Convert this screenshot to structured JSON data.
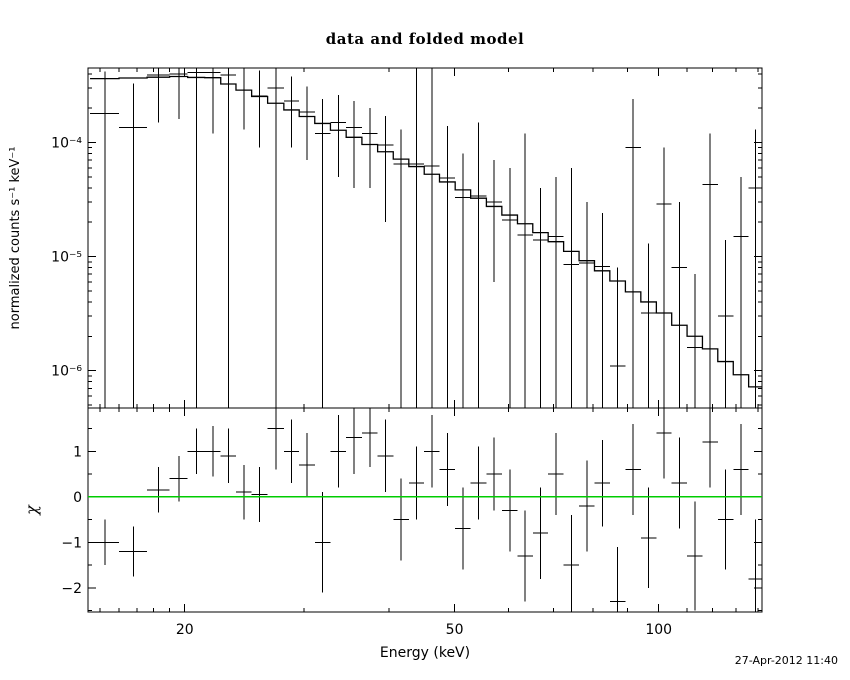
{
  "title": "data and folded model",
  "timestamp": "27-Apr-2012 11:40",
  "colors": {
    "foreground": "#000000",
    "background": "#ffffff",
    "zero_line": "#00cc00"
  },
  "chart_data": [
    {
      "type": "scatter",
      "panel": "spectrum",
      "xscale": "log",
      "yscale": "log",
      "xlim": [
        14.4,
        142.0
      ],
      "ylim": [
        4.7e-07,
        0.00045
      ],
      "ylabel": "normalized counts s⁻¹ keV⁻¹",
      "x_ticks_major": [
        20,
        50,
        100
      ],
      "x_tick_labels": [
        "20",
        "50",
        "100"
      ],
      "x_ticks_minor": [
        15,
        16,
        17,
        18,
        19,
        30,
        40,
        60,
        70,
        80,
        90,
        110,
        120,
        130,
        140
      ],
      "y_ticks_major": [
        0.0001,
        1e-05,
        1e-06
      ],
      "y_tick_labels": [
        "10⁻⁴",
        "10⁻⁵",
        "10⁻⁶"
      ],
      "y_ticks_minor": [
        5e-07,
        6e-07,
        7e-07,
        8e-07,
        9e-07,
        2e-06,
        3e-06,
        4e-06,
        5e-06,
        6e-06,
        7e-06,
        8e-06,
        9e-06,
        2e-05,
        3e-05,
        4e-05,
        5e-05,
        6e-05,
        7e-05,
        8e-05,
        9e-05,
        0.0002,
        0.0003,
        0.0004
      ],
      "model": {
        "label": "folded model",
        "bin_edges": [
          14.5,
          16.0,
          17.6,
          19.0,
          20.2,
          21.4,
          22.6,
          23.8,
          25.1,
          26.5,
          28.0,
          29.5,
          31.1,
          32.8,
          34.6,
          36.5,
          38.5,
          40.6,
          42.8,
          45.1,
          47.5,
          50.1,
          52.8,
          55.7,
          58.7,
          61.9,
          65.2,
          68.7,
          72.4,
          76.3,
          80.4,
          84.7,
          89.3,
          94.1,
          99.2,
          104.5,
          110.1,
          116.0,
          122.2,
          128.8,
          135.7,
          142.0
        ],
        "values": [
          0.000363,
          0.000368,
          0.000374,
          0.000379,
          0.000372,
          0.00037,
          0.000326,
          0.000288,
          0.000253,
          0.000221,
          0.000193,
          0.000169,
          0.000147,
          0.000128,
          0.000111,
          9.6e-05,
          8.3e-05,
          7.15e-05,
          6.15e-05,
          5.27e-05,
          4.51e-05,
          3.84e-05,
          3.25e-05,
          2.75e-05,
          2.31e-05,
          1.94e-05,
          1.62e-05,
          1.35e-05,
          1.11e-05,
          9.2e-06,
          7.5e-06,
          6.1e-06,
          4.9e-06,
          4e-06,
          3.2e-06,
          2.5e-06,
          2e-06,
          1.55e-06,
          1.2e-06,
          9.2e-07,
          7.2e-07
        ]
      },
      "points_format": [
        "energy_keV",
        "half_width_keV",
        "flux",
        "err_low_abs",
        "err_high_abs"
      ],
      "points": [
        [
          15.25,
          0.75,
          0.00018,
          0,
          0.00042
        ],
        [
          16.8,
          0.8,
          0.000135,
          0,
          0.00033
        ],
        [
          18.3,
          0.7,
          0.00039,
          0.00015,
          0.00052
        ],
        [
          19.6,
          0.6,
          0.0004,
          0.00016,
          0.0006
        ],
        [
          20.8,
          0.6,
          0.00041,
          0,
          0.00065
        ],
        [
          22.0,
          0.6,
          0.00041,
          0.00012,
          0.0006
        ],
        [
          23.2,
          0.6,
          0.00039,
          0,
          0.0006
        ],
        [
          24.45,
          0.65,
          0.00029,
          0.00013,
          0.00046
        ],
        [
          25.8,
          0.7,
          0.000255,
          9e-05,
          0.00043
        ],
        [
          27.25,
          0.75,
          0.0003,
          0,
          0.0005
        ],
        [
          28.75,
          0.75,
          0.00023,
          9e-05,
          0.00038
        ],
        [
          30.3,
          0.8,
          0.000185,
          7e-05,
          0.00031
        ],
        [
          31.95,
          0.85,
          0.00012,
          0,
          0.00024
        ],
        [
          33.7,
          0.9,
          0.00015,
          5e-05,
          0.00026
        ],
        [
          35.55,
          0.95,
          0.000135,
          4e-05,
          0.00023
        ],
        [
          37.5,
          1.0,
          0.00012,
          4e-05,
          0.0002
        ],
        [
          39.55,
          1.05,
          9.5e-05,
          2e-05,
          0.00017
        ],
        [
          41.7,
          1.1,
          6.5e-05,
          0,
          0.00013
        ],
        [
          43.95,
          1.15,
          6.5e-05,
          0,
          0.0005
        ],
        [
          46.3,
          1.2,
          6.2e-05,
          0,
          0.00048
        ],
        [
          48.8,
          1.3,
          4.9e-05,
          0,
          0.00014
        ],
        [
          51.45,
          1.35,
          3.3e-05,
          0,
          8e-05
        ],
        [
          54.25,
          1.45,
          3.4e-05,
          0,
          0.00015
        ],
        [
          57.2,
          1.5,
          3e-05,
          6e-06,
          7e-05
        ],
        [
          60.3,
          1.6,
          2.1e-05,
          0,
          6e-05
        ],
        [
          63.55,
          1.65,
          1.55e-05,
          0,
          0.00012
        ],
        [
          66.95,
          1.75,
          1.4e-05,
          0,
          4e-05
        ],
        [
          70.55,
          1.85,
          1.5e-05,
          0,
          5e-05
        ],
        [
          74.35,
          1.95,
          8.5e-06,
          0,
          6e-05
        ],
        [
          78.35,
          2.05,
          8.8e-06,
          0,
          3e-05
        ],
        [
          82.55,
          2.15,
          8.2e-06,
          0,
          2.4e-05
        ],
        [
          87.0,
          2.3,
          1.1e-06,
          0,
          8e-06
        ],
        [
          91.7,
          2.4,
          9e-05,
          0,
          0.00024
        ],
        [
          96.65,
          2.55,
          3.2e-06,
          0,
          1.3e-05
        ],
        [
          101.85,
          2.65,
          2.9e-05,
          0,
          9e-05
        ],
        [
          107.3,
          2.8,
          8e-06,
          0,
          3e-05
        ],
        [
          113.05,
          2.95,
          1.6e-06,
          0,
          7e-06
        ],
        [
          119.1,
          3.1,
          4.3e-05,
          0,
          0.00012
        ],
        [
          125.5,
          3.3,
          3e-06,
          0,
          1.4e-05
        ],
        [
          132.25,
          3.45,
          1.5e-05,
          0,
          5e-05
        ],
        [
          138.85,
          3.15,
          4e-05,
          0,
          0.00013
        ]
      ]
    },
    {
      "type": "scatter",
      "panel": "residuals",
      "xscale": "log",
      "yscale": "linear",
      "xlim": [
        14.4,
        142.0
      ],
      "ylim": [
        -2.53,
        1.95
      ],
      "xlabel": "Energy (keV)",
      "ylabel": "χ",
      "y_ticks_major": [
        -2,
        -1,
        0,
        1
      ],
      "y_tick_labels": [
        "−2",
        "−1",
        "0",
        "1"
      ],
      "y_ticks_minor": [
        -2.5,
        -1.5,
        -0.5,
        0.5,
        1.5
      ],
      "zero_line": {
        "y": 0,
        "color": "#00cc00"
      },
      "points_format": [
        "energy_keV",
        "half_width_keV",
        "chi",
        "err_low",
        "err_high"
      ],
      "points": [
        [
          15.25,
          0.75,
          -1.0,
          -1.5,
          -0.5
        ],
        [
          16.8,
          0.8,
          -1.2,
          -1.75,
          -0.65
        ],
        [
          18.3,
          0.7,
          0.15,
          -0.35,
          0.65
        ],
        [
          19.6,
          0.6,
          0.4,
          -0.1,
          0.9
        ],
        [
          20.8,
          0.6,
          1.0,
          0.5,
          1.5
        ],
        [
          22.0,
          0.6,
          1.0,
          0.45,
          1.55
        ],
        [
          23.2,
          0.6,
          0.9,
          0.3,
          1.5
        ],
        [
          24.45,
          0.65,
          0.1,
          -0.5,
          0.7
        ],
        [
          25.8,
          0.7,
          0.05,
          -0.55,
          0.65
        ],
        [
          27.25,
          0.75,
          1.5,
          0.6,
          2.4
        ],
        [
          28.75,
          0.75,
          1.0,
          0.3,
          1.7
        ],
        [
          30.3,
          0.8,
          0.7,
          0.0,
          1.4
        ],
        [
          31.95,
          0.85,
          -1.0,
          -2.1,
          0.1
        ],
        [
          33.7,
          0.9,
          1.0,
          0.2,
          1.8
        ],
        [
          35.55,
          0.95,
          1.3,
          0.5,
          2.1
        ],
        [
          37.5,
          1.0,
          1.4,
          0.65,
          2.15
        ],
        [
          39.55,
          1.05,
          0.9,
          0.1,
          1.7
        ],
        [
          41.7,
          1.1,
          -0.5,
          -1.4,
          0.4
        ],
        [
          43.95,
          1.15,
          0.3,
          -0.5,
          1.1
        ],
        [
          46.3,
          1.2,
          1.0,
          0.2,
          1.8
        ],
        [
          48.8,
          1.3,
          0.6,
          -0.2,
          1.4
        ],
        [
          51.45,
          1.35,
          -0.7,
          -1.6,
          0.2
        ],
        [
          54.25,
          1.45,
          0.3,
          -0.5,
          1.1
        ],
        [
          57.2,
          1.5,
          0.5,
          -0.3,
          1.3
        ],
        [
          60.3,
          1.6,
          -0.3,
          -1.2,
          0.6
        ],
        [
          63.55,
          1.65,
          -1.3,
          -2.3,
          -0.3
        ],
        [
          66.95,
          1.75,
          -0.8,
          -1.8,
          0.2
        ],
        [
          70.55,
          1.85,
          0.5,
          -0.4,
          1.4
        ],
        [
          74.35,
          1.95,
          -1.5,
          -2.6,
          -0.4
        ],
        [
          78.35,
          2.05,
          -0.2,
          -1.2,
          0.8
        ],
        [
          82.55,
          2.15,
          0.3,
          -0.65,
          1.25
        ],
        [
          87.0,
          2.3,
          -2.3,
          -3.5,
          -1.1
        ],
        [
          91.7,
          2.4,
          0.6,
          -0.4,
          1.6
        ],
        [
          96.65,
          2.55,
          -0.9,
          -2.0,
          0.2
        ],
        [
          101.85,
          2.65,
          1.4,
          0.4,
          2.4
        ],
        [
          107.3,
          2.8,
          0.3,
          -0.7,
          1.3
        ],
        [
          113.05,
          2.95,
          -1.3,
          -2.5,
          -0.1
        ],
        [
          119.1,
          3.1,
          1.2,
          0.2,
          2.2
        ],
        [
          125.5,
          3.3,
          -0.5,
          -1.6,
          0.6
        ],
        [
          132.25,
          3.45,
          0.6,
          -0.4,
          1.6
        ],
        [
          138.85,
          3.15,
          -1.8,
          -3.1,
          -0.5
        ]
      ]
    }
  ]
}
